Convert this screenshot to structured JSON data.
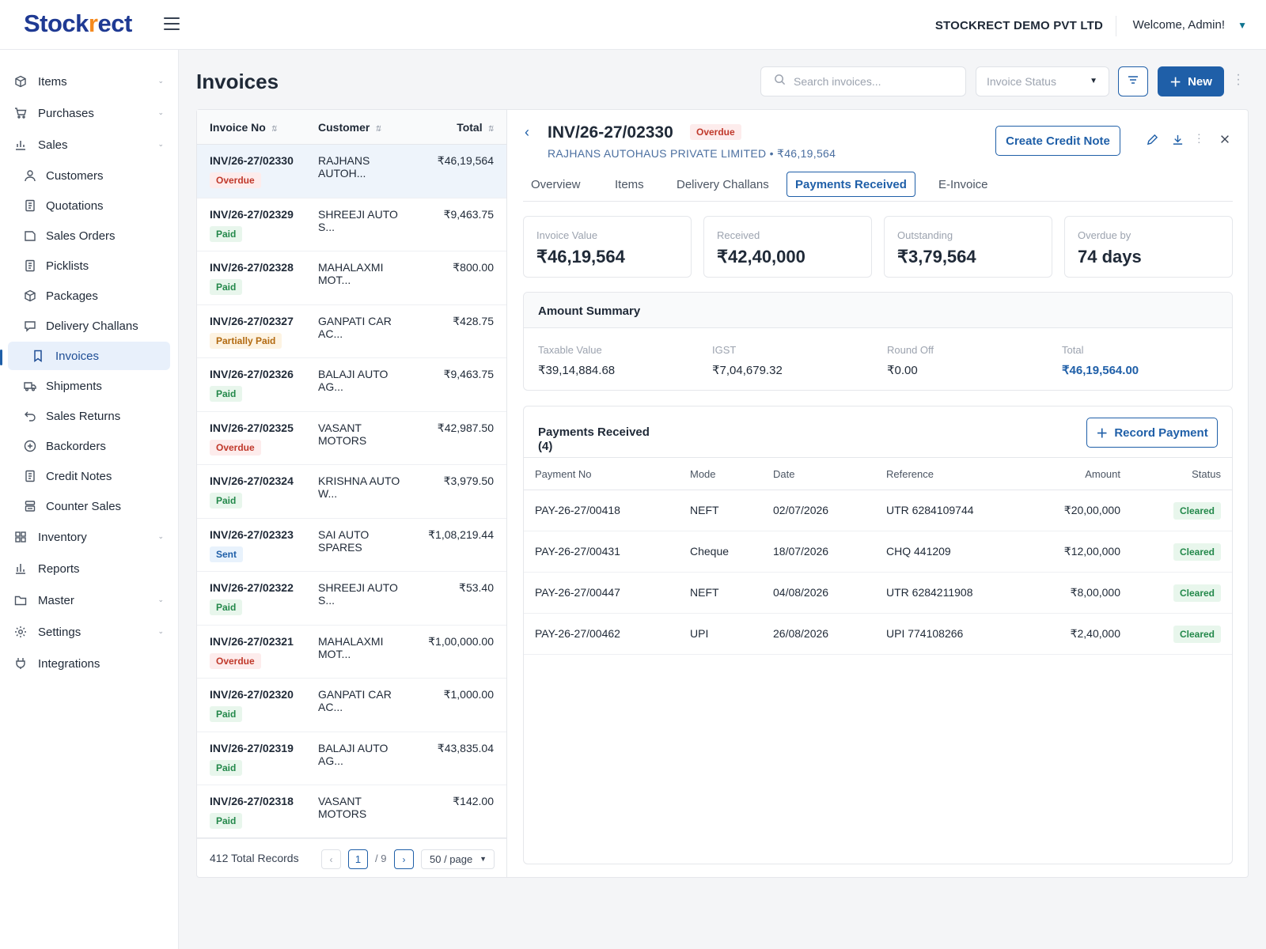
{
  "header": {
    "logo_text_a": "Stock",
    "logo_text_b": "r",
    "logo_text_c": "ect",
    "company": "STOCKRECT DEMO PVT LTD",
    "welcome": "Welcome, Admin!"
  },
  "sidebar": {
    "items": [
      {
        "label": "Items",
        "icon": "box-icon"
      },
      {
        "label": "Purchases",
        "icon": "cart-icon"
      },
      {
        "label": "Sales",
        "icon": "chart-icon"
      },
      {
        "label": "Customers",
        "icon": "user-icon"
      },
      {
        "label": "Quotations",
        "icon": "doc-icon"
      },
      {
        "label": "Sales Orders",
        "icon": "folder-icon"
      },
      {
        "label": "Picklists",
        "icon": "doc-icon"
      },
      {
        "label": "Packages",
        "icon": "package-icon"
      },
      {
        "label": "Delivery Challans",
        "icon": "chat-icon"
      },
      {
        "label": "Invoices",
        "icon": "bookmark-icon"
      },
      {
        "label": "Shipments",
        "icon": "truck-icon"
      },
      {
        "label": "Sales Returns",
        "icon": "return-icon"
      },
      {
        "label": "Backorders",
        "icon": "plus-circle-icon"
      },
      {
        "label": "Credit Notes",
        "icon": "doc-icon"
      },
      {
        "label": "Counter Sales",
        "icon": "register-icon"
      },
      {
        "label": "Inventory",
        "icon": "grid-icon"
      },
      {
        "label": "Reports",
        "icon": "bar-chart-icon"
      },
      {
        "label": "Master",
        "icon": "folder-icon"
      },
      {
        "label": "Settings",
        "icon": "gear-icon"
      },
      {
        "label": "Integrations",
        "icon": "plug-icon"
      }
    ]
  },
  "page": {
    "title": "Invoices",
    "search_placeholder": "Search invoices...",
    "status_placeholder": "Invoice Status",
    "new_label": "New"
  },
  "list": {
    "headers": {
      "invoice_no": "Invoice No",
      "customer": "Customer",
      "total": "Total"
    },
    "rows": [
      {
        "inv": "INV/26-27/02330",
        "cust": "RAJHANS AUTOH...",
        "total": "₹46,19,564",
        "status": "Overdue"
      },
      {
        "inv": "INV/26-27/02329",
        "cust": "SHREEJI AUTO S...",
        "total": "₹9,463.75",
        "status": "Paid"
      },
      {
        "inv": "INV/26-27/02328",
        "cust": "MAHALAXMI MOT...",
        "total": "₹800.00",
        "status": "Paid"
      },
      {
        "inv": "INV/26-27/02327",
        "cust": "GANPATI CAR AC...",
        "total": "₹428.75",
        "status": "Partially Paid"
      },
      {
        "inv": "INV/26-27/02326",
        "cust": "BALAJI AUTO AG...",
        "total": "₹9,463.75",
        "status": "Paid"
      },
      {
        "inv": "INV/26-27/02325",
        "cust": "VASANT MOTORS",
        "total": "₹42,987.50",
        "status": "Overdue"
      },
      {
        "inv": "INV/26-27/02324",
        "cust": "KRISHNA AUTO W...",
        "total": "₹3,979.50",
        "status": "Paid"
      },
      {
        "inv": "INV/26-27/02323",
        "cust": "SAI AUTO SPARES",
        "total": "₹1,08,219.44",
        "status": "Sent"
      },
      {
        "inv": "INV/26-27/02322",
        "cust": "SHREEJI AUTO S...",
        "total": "₹53.40",
        "status": "Paid"
      },
      {
        "inv": "INV/26-27/02321",
        "cust": "MAHALAXMI MOT...",
        "total": "₹1,00,000.00",
        "status": "Overdue"
      },
      {
        "inv": "INV/26-27/02320",
        "cust": "GANPATI CAR AC...",
        "total": "₹1,000.00",
        "status": "Paid"
      },
      {
        "inv": "INV/26-27/02319",
        "cust": "BALAJI AUTO AG...",
        "total": "₹43,835.04",
        "status": "Paid"
      },
      {
        "inv": "INV/26-27/02318",
        "cust": "VASANT MOTORS",
        "total": "₹142.00",
        "status": "Paid"
      }
    ],
    "total_records": "412 Total Records",
    "page_prev": "‹",
    "page_current": "1",
    "page_of": "/ 9",
    "page_next": "›",
    "per_page": "50 / page"
  },
  "detail": {
    "title": "INV/26-27/02330",
    "status": "Overdue",
    "subtitle": "RAJHANS AUTOHAUS PRIVATE LIMITED • ₹46,19,564",
    "credit_note_label": "Create Credit Note",
    "tabs": [
      "Overview",
      "Items",
      "Delivery Challans",
      "Payments Received",
      "E-Invoice"
    ],
    "active_tab": "Payments Received",
    "stats": [
      {
        "label": "Invoice Value",
        "value": "₹46,19,564"
      },
      {
        "label": "Received",
        "value": "₹42,40,000"
      },
      {
        "label": "Outstanding",
        "value": "₹3,79,564"
      },
      {
        "label": "Overdue by",
        "value": "74 days"
      }
    ],
    "summary": {
      "title": "Amount Summary",
      "cols": [
        {
          "label": "Taxable Value",
          "value": "₹39,14,884.68"
        },
        {
          "label": "IGST",
          "value": "₹7,04,679.32"
        },
        {
          "label": "Round Off",
          "value": "₹0.00"
        },
        {
          "label": "Total",
          "value": "₹46,19,564.00"
        }
      ]
    },
    "payments": {
      "title_a": "Payments Received",
      "title_b": "(4)",
      "record_label": "Record Payment",
      "headers": {
        "no": "Payment No",
        "mode": "Mode",
        "date": "Date",
        "ref": "Reference",
        "amount": "Amount",
        "status": "Status"
      },
      "rows": [
        {
          "no": "PAY-26-27/00418",
          "mode": "NEFT",
          "date": "02/07/2026",
          "ref": "UTR 6284109744",
          "amount": "₹20,00,000",
          "status": "Cleared"
        },
        {
          "no": "PAY-26-27/00431",
          "mode": "Cheque",
          "date": "18/07/2026",
          "ref": "CHQ 441209",
          "amount": "₹12,00,000",
          "status": "Cleared"
        },
        {
          "no": "PAY-26-27/00447",
          "mode": "NEFT",
          "date": "04/08/2026",
          "ref": "UTR 6284211908",
          "amount": "₹8,00,000",
          "status": "Cleared"
        },
        {
          "no": "PAY-26-27/00462",
          "mode": "UPI",
          "date": "26/08/2026",
          "ref": "UPI 774108266",
          "amount": "₹2,40,000",
          "status": "Cleared"
        }
      ]
    }
  },
  "colors": {
    "brand": "#1f3a93",
    "accent": "#1f5fa8",
    "logo_check": "#f58a1f"
  }
}
